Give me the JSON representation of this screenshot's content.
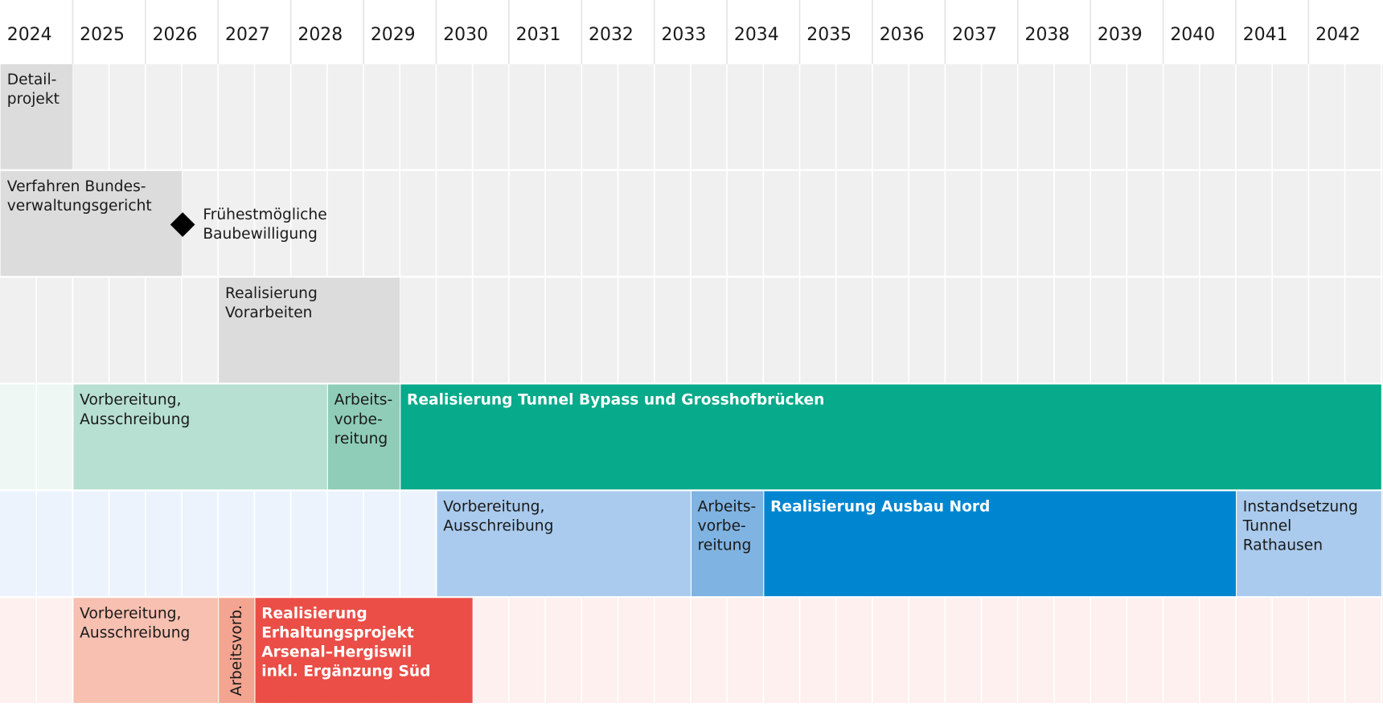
{
  "years": [
    "2024",
    "2025",
    "2026",
    "2027",
    "2028",
    "2029",
    "2030",
    "2031",
    "2032",
    "2033",
    "2034",
    "2035",
    "2036",
    "2037",
    "2038",
    "2039",
    "2040",
    "2041",
    "2042"
  ],
  "rows": [
    {
      "bars": [
        {
          "label": [
            "Detail-",
            "projekt"
          ]
        }
      ]
    },
    {
      "bars": [
        {
          "label": [
            "Verfahren Bundes-",
            "verwaltungsgericht"
          ]
        }
      ],
      "milestone": {
        "label": [
          "Frühestmögliche",
          "Baubewilligung"
        ]
      }
    },
    {
      "bars": [
        {
          "label": [
            "Realisierung",
            "Vorarbeiten"
          ]
        }
      ]
    },
    {
      "bars": [
        {
          "label": [
            "Vorbereitung,",
            "Ausschreibung"
          ]
        },
        {
          "label": [
            "Arbeits-",
            "vorbe-",
            "reitung"
          ]
        },
        {
          "label": [
            "Realisierung Tunnel Bypass und Grosshofbrücken"
          ]
        }
      ]
    },
    {
      "bars": [
        {
          "label": [
            "Vorbereitung,",
            "Ausschreibung"
          ]
        },
        {
          "label": [
            "Arbeits-",
            "vorbe-",
            "reitung"
          ]
        },
        {
          "label": [
            "Realisierung Ausbau Nord"
          ]
        },
        {
          "label": [
            "Instandsetzung",
            "Tunnel",
            "Rathausen"
          ]
        }
      ]
    },
    {
      "bars": [
        {
          "label": [
            "Vorbereitung,",
            "Ausschreibung"
          ]
        },
        {
          "label": [
            "Arbeitsvorb."
          ]
        },
        {
          "label": [
            "Realisierung",
            "Erhaltungsprojekt",
            "Arsenal–Hergiswil",
            "inkl. Ergänzung Süd"
          ]
        }
      ]
    }
  ]
}
